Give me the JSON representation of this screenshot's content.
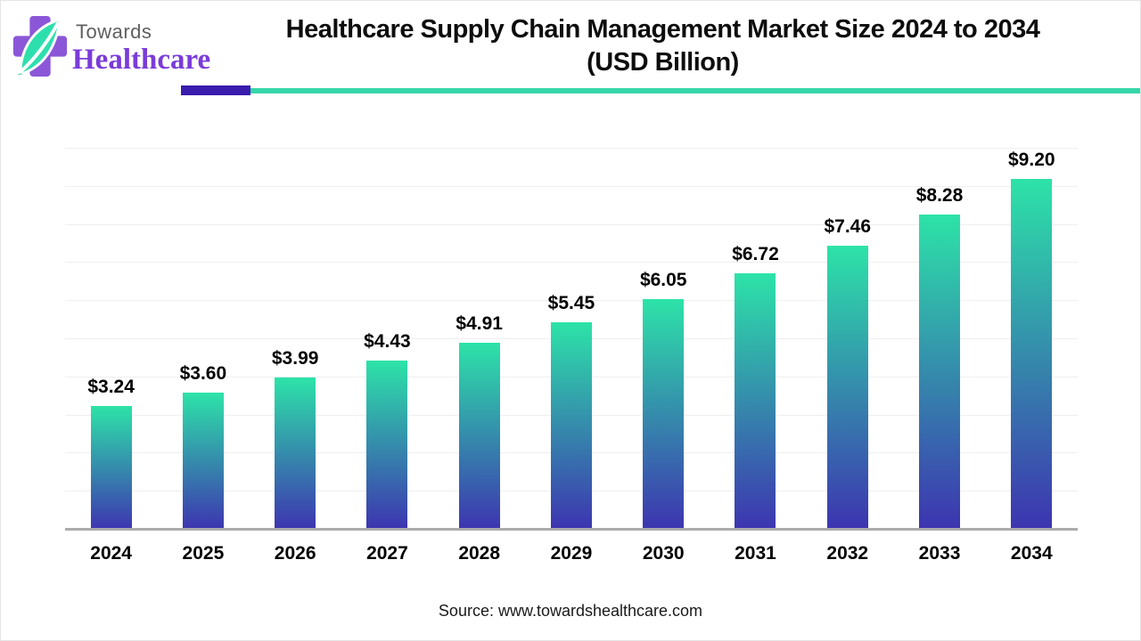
{
  "logo": {
    "brand_top": "Towards",
    "brand_bottom": "Healthcare",
    "cross_color": "#8B57D8",
    "leaf_color": "#2EDFAE",
    "leaf_dark_color": "#22C79B"
  },
  "header": {
    "title_line1": "Healthcare Supply Chain Management Market Size 2024 to 2034",
    "title_line2": "(USD Billion)",
    "underline_purple": "#3A1CAE",
    "underline_teal": "#36D6A8"
  },
  "chart_data": {
    "type": "bar",
    "title": "Healthcare Supply Chain Management Market Size 2024 to 2034 (USD Billion)",
    "categories": [
      "2024",
      "2025",
      "2026",
      "2027",
      "2028",
      "2029",
      "2030",
      "2031",
      "2032",
      "2033",
      "2034"
    ],
    "values": [
      3.24,
      3.6,
      3.99,
      4.43,
      4.91,
      5.45,
      6.05,
      6.72,
      7.46,
      8.28,
      9.2
    ],
    "data_labels": [
      "$3.24",
      "$3.60",
      "$3.99",
      "$4.43",
      "$4.91",
      "$5.45",
      "$6.05",
      "$6.72",
      "$7.46",
      "$8.28",
      "$9.20"
    ],
    "xlabel": "",
    "ylabel": "",
    "ylim": [
      0,
      10
    ],
    "grid": true,
    "grid_step": 1,
    "legend": false,
    "bar_gradient_top": "#2DE3A8",
    "bar_gradient_bottom": "#3D34B0",
    "gridline_color": "#efefef",
    "axis_line_color": "#ababab"
  },
  "footer": {
    "source": "Source: www.towardshealthcare.com"
  }
}
